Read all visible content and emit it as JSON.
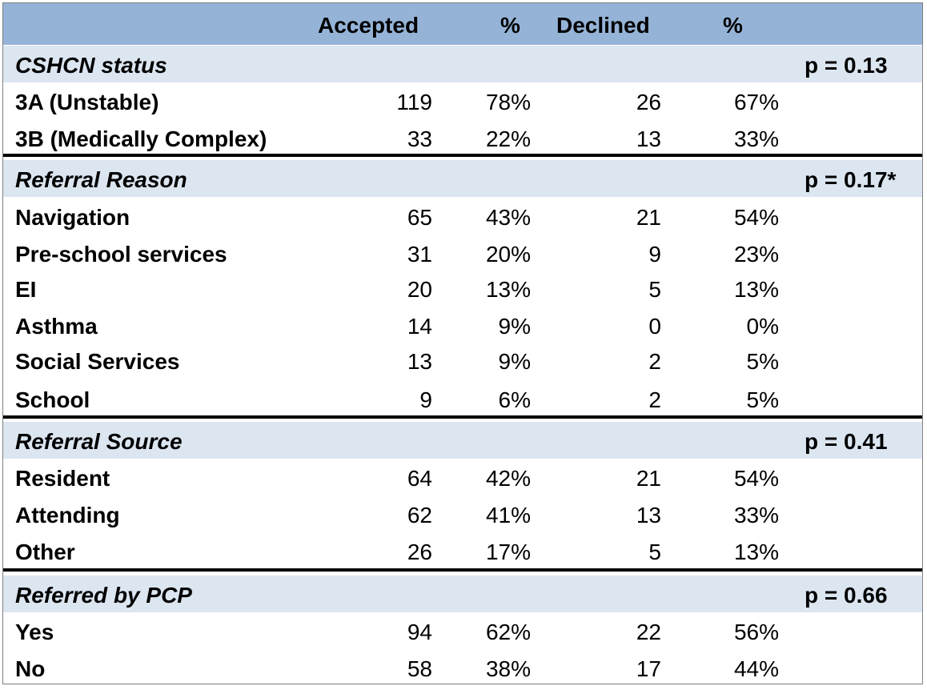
{
  "header": {
    "accepted": "Accepted",
    "pct1": "%",
    "declined": "Declined",
    "pct2": "%"
  },
  "sections": [
    {
      "title": "CSHCN status",
      "p": "p = 0.13",
      "rows": [
        {
          "label": "3A (Unstable)",
          "accepted": "119",
          "accepted_pct": "78%",
          "declined": "26",
          "declined_pct": "67%"
        },
        {
          "label": "3B (Medically Complex)",
          "accepted": "33",
          "accepted_pct": "22%",
          "declined": "13",
          "declined_pct": "33%"
        }
      ]
    },
    {
      "title": "Referral Reason",
      "p": "p = 0.17*",
      "rows": [
        {
          "label": "Navigation",
          "accepted": "65",
          "accepted_pct": "43%",
          "declined": "21",
          "declined_pct": "54%"
        },
        {
          "label": "Pre-school services",
          "accepted": "31",
          "accepted_pct": "20%",
          "declined": "9",
          "declined_pct": "23%"
        },
        {
          "label": "EI",
          "accepted": "20",
          "accepted_pct": "13%",
          "declined": "5",
          "declined_pct": "13%"
        },
        {
          "label": "Asthma",
          "accepted": "14",
          "accepted_pct": "9%",
          "declined": "0",
          "declined_pct": "0%"
        },
        {
          "label": "Social Services",
          "accepted": "13",
          "accepted_pct": "9%",
          "declined": "2",
          "declined_pct": "5%"
        },
        {
          "label": "School",
          "accepted": "9",
          "accepted_pct": "6%",
          "declined": "2",
          "declined_pct": "5%"
        }
      ]
    },
    {
      "title": "Referral Source",
      "p": "p = 0.41",
      "rows": [
        {
          "label": "Resident",
          "accepted": "64",
          "accepted_pct": "42%",
          "declined": "21",
          "declined_pct": "54%"
        },
        {
          "label": "Attending",
          "accepted": "62",
          "accepted_pct": "41%",
          "declined": "13",
          "declined_pct": "33%"
        },
        {
          "label": "Other",
          "accepted": "26",
          "accepted_pct": "17%",
          "declined": "5",
          "declined_pct": "13%"
        }
      ]
    },
    {
      "title": "Referred by PCP",
      "p": "p = 0.66",
      "rows": [
        {
          "label": "Yes",
          "accepted": "94",
          "accepted_pct": "62%",
          "declined": "22",
          "declined_pct": "56%"
        },
        {
          "label": "No",
          "accepted": "58",
          "accepted_pct": "38%",
          "declined": "17",
          "declined_pct": "44%"
        }
      ]
    }
  ],
  "colors": {
    "header_bg": "#95b3d7",
    "section_bg": "#dce6f1",
    "divider": "#000000"
  }
}
